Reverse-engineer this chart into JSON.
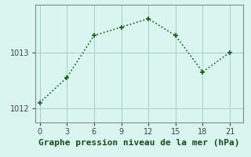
{
  "x": [
    0,
    3,
    6,
    9,
    12,
    15,
    18,
    21
  ],
  "y": [
    1012.1,
    1012.55,
    1013.3,
    1013.45,
    1013.6,
    1013.3,
    1012.65,
    1013.0
  ],
  "line_color": "#1a5c1a",
  "marker": "+",
  "marker_size": 5,
  "bg_color": "#d8f5f0",
  "grid_color": "#aaccc8",
  "xlabel": "Graphe pression niveau de la mer (hPa)",
  "xlabel_fontsize": 8,
  "xticks": [
    0,
    3,
    6,
    9,
    12,
    15,
    18,
    21
  ],
  "ytick_labels": [
    "1012",
    "1013"
  ],
  "ytick_vals": [
    1012,
    1013
  ],
  "ylim": [
    1011.75,
    1013.85
  ],
  "xlim": [
    -0.5,
    22.5
  ]
}
